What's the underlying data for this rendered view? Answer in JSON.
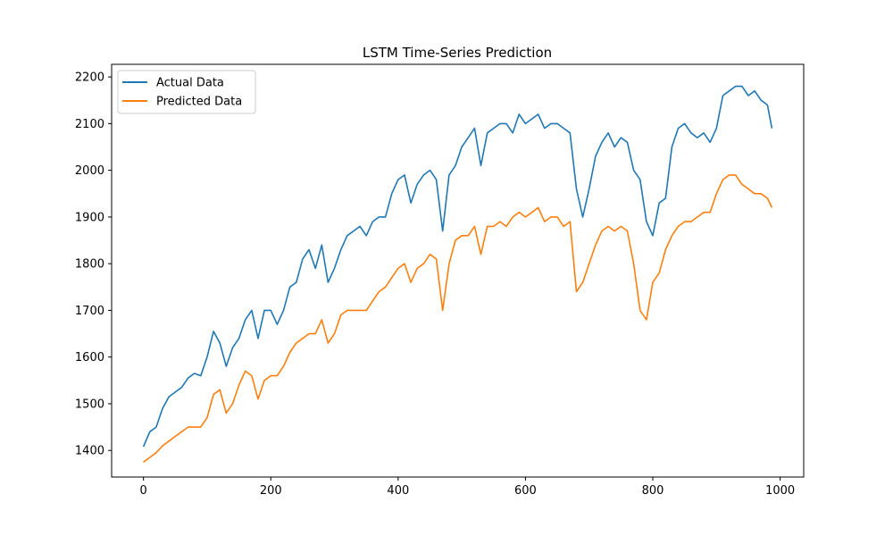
{
  "chart_data": {
    "type": "line",
    "title": "LSTM Time-Series Prediction",
    "xlabel": "",
    "ylabel": "",
    "xlim": [
      -50,
      1037
    ],
    "ylim": [
      1343,
      2227
    ],
    "x_ticks": [
      0,
      200,
      400,
      600,
      800,
      1000
    ],
    "y_ticks": [
      1400,
      1500,
      1600,
      1700,
      1800,
      1900,
      2000,
      2100,
      2200
    ],
    "grid": false,
    "legend_position": "top-left",
    "series": [
      {
        "name": "Actual Data",
        "color": "#1f77b4",
        "x": [
          0,
          10,
          20,
          30,
          40,
          50,
          60,
          70,
          80,
          90,
          100,
          110,
          120,
          130,
          140,
          150,
          160,
          170,
          180,
          190,
          200,
          210,
          220,
          230,
          240,
          250,
          260,
          270,
          280,
          290,
          300,
          310,
          320,
          330,
          340,
          350,
          360,
          370,
          380,
          390,
          400,
          410,
          420,
          430,
          440,
          450,
          460,
          470,
          480,
          490,
          500,
          510,
          520,
          530,
          540,
          550,
          560,
          570,
          580,
          590,
          600,
          610,
          620,
          630,
          640,
          650,
          660,
          670,
          680,
          690,
          700,
          710,
          720,
          730,
          740,
          750,
          760,
          770,
          780,
          790,
          800,
          810,
          820,
          830,
          840,
          850,
          860,
          870,
          880,
          890,
          900,
          910,
          920,
          930,
          940,
          950,
          960,
          970,
          980,
          987
        ],
        "y": [
          1408,
          1440,
          1450,
          1490,
          1515,
          1525,
          1535,
          1555,
          1565,
          1560,
          1600,
          1655,
          1630,
          1580,
          1620,
          1640,
          1680,
          1700,
          1640,
          1700,
          1700,
          1670,
          1700,
          1750,
          1760,
          1810,
          1830,
          1790,
          1840,
          1760,
          1790,
          1830,
          1860,
          1870,
          1880,
          1860,
          1890,
          1900,
          1900,
          1950,
          1980,
          1990,
          1930,
          1970,
          1990,
          2000,
          1980,
          1870,
          1990,
          2010,
          2050,
          2070,
          2090,
          2010,
          2080,
          2090,
          2100,
          2100,
          2080,
          2120,
          2100,
          2110,
          2120,
          2090,
          2100,
          2100,
          2090,
          2080,
          1960,
          1900,
          1960,
          2030,
          2060,
          2080,
          2050,
          2070,
          2060,
          2000,
          1980,
          1890,
          1860,
          1930,
          1940,
          2050,
          2090,
          2100,
          2080,
          2070,
          2080,
          2060,
          2090,
          2160,
          2170,
          2180,
          2180,
          2160,
          2170,
          2150,
          2140,
          2090
        ]
      },
      {
        "name": "Predicted Data",
        "color": "#ff7f0e",
        "x": [
          0,
          10,
          20,
          30,
          40,
          50,
          60,
          70,
          80,
          90,
          100,
          110,
          120,
          130,
          140,
          150,
          160,
          170,
          180,
          190,
          200,
          210,
          220,
          230,
          240,
          250,
          260,
          270,
          280,
          290,
          300,
          310,
          320,
          330,
          340,
          350,
          360,
          370,
          380,
          390,
          400,
          410,
          420,
          430,
          440,
          450,
          460,
          470,
          480,
          490,
          500,
          510,
          520,
          530,
          540,
          550,
          560,
          570,
          580,
          590,
          600,
          610,
          620,
          630,
          640,
          650,
          660,
          670,
          680,
          690,
          700,
          710,
          720,
          730,
          740,
          750,
          760,
          770,
          780,
          790,
          800,
          810,
          820,
          830,
          840,
          850,
          860,
          870,
          880,
          890,
          900,
          910,
          920,
          930,
          940,
          950,
          960,
          970,
          980,
          987
        ],
        "y": [
          1375,
          1385,
          1395,
          1410,
          1420,
          1430,
          1440,
          1450,
          1450,
          1450,
          1470,
          1520,
          1530,
          1480,
          1500,
          1540,
          1570,
          1560,
          1510,
          1550,
          1560,
          1560,
          1580,
          1610,
          1630,
          1640,
          1650,
          1650,
          1680,
          1630,
          1650,
          1690,
          1700,
          1700,
          1700,
          1700,
          1720,
          1740,
          1750,
          1770,
          1790,
          1800,
          1760,
          1790,
          1800,
          1820,
          1810,
          1700,
          1800,
          1850,
          1860,
          1860,
          1880,
          1820,
          1880,
          1880,
          1890,
          1880,
          1900,
          1910,
          1900,
          1910,
          1920,
          1890,
          1900,
          1900,
          1880,
          1890,
          1740,
          1760,
          1800,
          1840,
          1870,
          1880,
          1870,
          1880,
          1870,
          1800,
          1700,
          1680,
          1760,
          1780,
          1830,
          1860,
          1880,
          1890,
          1890,
          1900,
          1910,
          1910,
          1950,
          1980,
          1990,
          1990,
          1970,
          1960,
          1950,
          1950,
          1940,
          1920
        ]
      }
    ]
  }
}
